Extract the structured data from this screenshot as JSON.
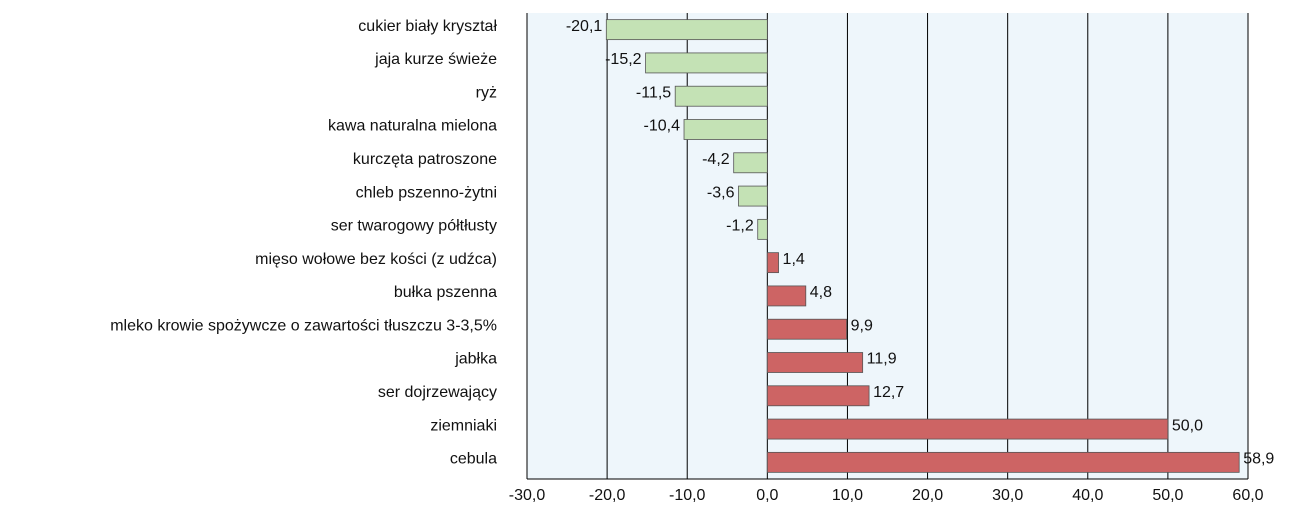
{
  "chart_data": {
    "type": "hbar",
    "categories": [
      "cukier biały kryształ",
      "jaja kurze świeże",
      "ryż",
      "kawa naturalna mielona",
      "kurczęta patroszone",
      "chleb pszenno-żytni",
      "ser twarogowy półtłusty",
      "mięso wołowe bez kości (z udźca)",
      "bułka pszenna",
      "mleko krowie spożywcze o zawartości tłuszczu 3-3,5%",
      "jabłka",
      "ser dojrzewający",
      "ziemniaki",
      "cebula"
    ],
    "values": [
      -20.1,
      -15.2,
      -11.5,
      -10.4,
      -4.2,
      -3.6,
      -1.2,
      1.4,
      4.8,
      9.9,
      11.9,
      12.7,
      50.0,
      58.9
    ],
    "value_labels": [
      "-20,1",
      "-15,2",
      "-11,5",
      "-10,4",
      "-4,2",
      "-3,6",
      "-1,2",
      "1,4",
      "4,8",
      "9,9",
      "11,9",
      "12,7",
      "50,0",
      "58,9"
    ],
    "negative_color": "#c4e2b5",
    "positive_color": "#cd6464",
    "xlim": [
      -30,
      60
    ],
    "xticks": [
      {
        "value": -30,
        "label": "-30,0"
      },
      {
        "value": -20,
        "label": "-20,0"
      },
      {
        "value": -10,
        "label": "-10,0"
      },
      {
        "value": 0,
        "label": "0,0"
      },
      {
        "value": 10,
        "label": "10,0"
      },
      {
        "value": 20,
        "label": "20,0"
      },
      {
        "value": 30,
        "label": "30,0"
      },
      {
        "value": 40,
        "label": "40,0"
      },
      {
        "value": 50,
        "label": "50,0"
      },
      {
        "value": 60,
        "label": "60,0"
      }
    ],
    "grid": true
  }
}
